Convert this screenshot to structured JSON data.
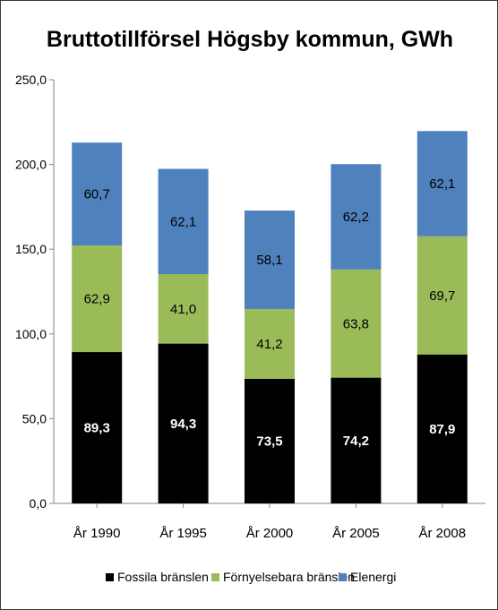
{
  "chart_data": {
    "type": "bar",
    "stacked": true,
    "title": "Bruttotillförsel Högsby kommun, GWh",
    "xlabel": "",
    "ylabel": "",
    "categories": [
      "År 1990",
      "År 1995",
      "År 2000",
      "År 2005",
      "År 2008"
    ],
    "series": [
      {
        "name": "Fossila bränslen",
        "color": "#000000",
        "values": [
          89.3,
          94.3,
          73.5,
          74.2,
          87.9
        ],
        "labels": [
          "89,3",
          "94,3",
          "73,5",
          "74,2",
          "87,9"
        ]
      },
      {
        "name": "Förnyelsebara bränslen",
        "color": "#9bbb59",
        "values": [
          62.9,
          41.0,
          41.2,
          63.8,
          69.7
        ],
        "labels": [
          "62,9",
          "41,0",
          "41,2",
          "63,8",
          "69,7"
        ]
      },
      {
        "name": "Elenergi",
        "color": "#4f81bd",
        "values": [
          60.7,
          62.1,
          58.1,
          62.2,
          62.1
        ],
        "labels": [
          "60,7",
          "62,1",
          "58,1",
          "62,2",
          "62,1"
        ]
      }
    ],
    "ylim": [
      0,
      250
    ],
    "yticks": [
      "0,0",
      "50,0",
      "100,0",
      "150,0",
      "200,0",
      "250,0"
    ],
    "grid": false,
    "legend_position": "bottom"
  }
}
